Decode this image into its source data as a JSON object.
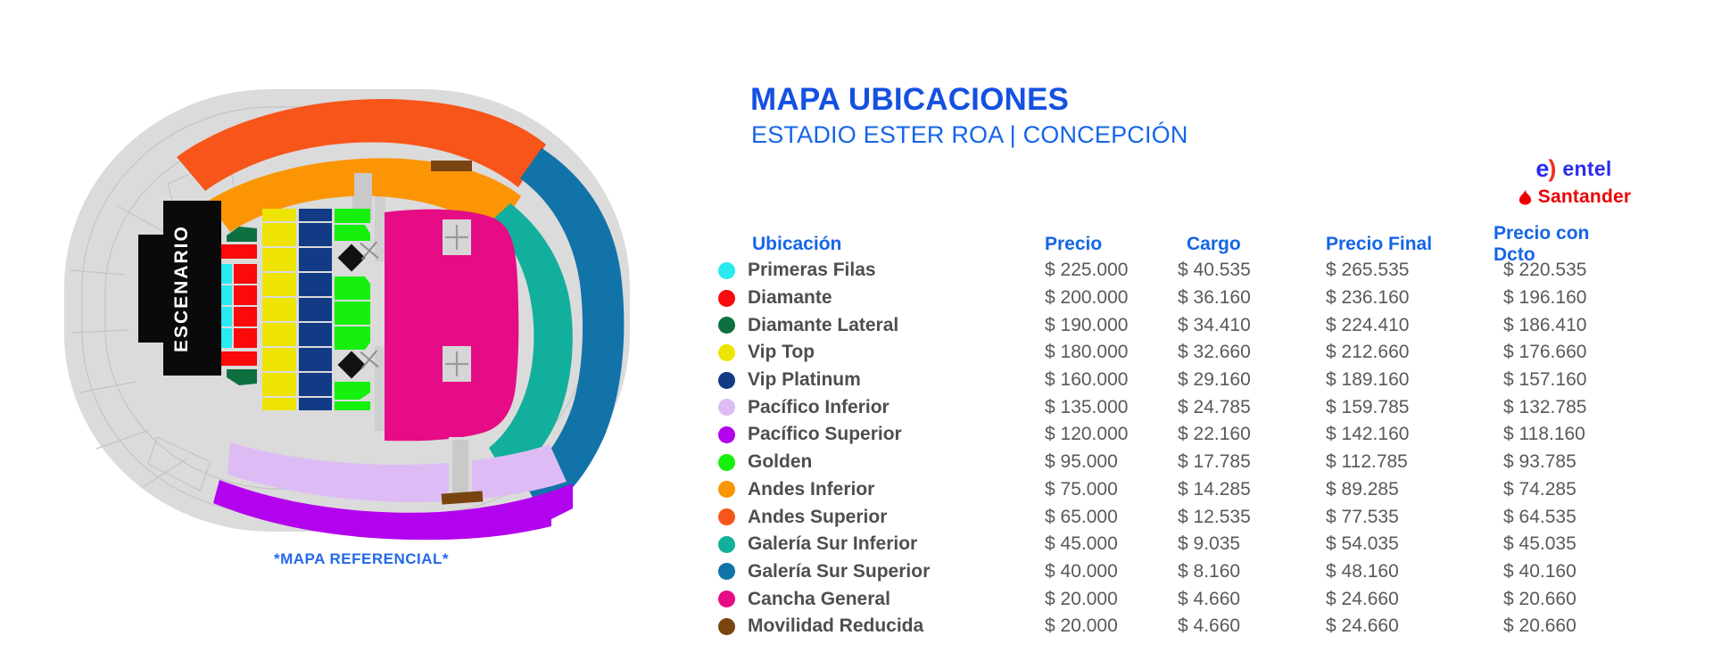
{
  "header": {
    "title": "MAPA UBICACIONES",
    "subtitle": "ESTADIO ESTER ROA | CONCEPCIÓN"
  },
  "map": {
    "stage_label": "ESCENARIO",
    "caption": "*MAPA REFERENCIAL*"
  },
  "sponsors": {
    "entel": "entel",
    "santander": "Santander"
  },
  "colors": {
    "accent_blue": "#1565E8",
    "title_blue": "#1451E1",
    "caption_blue": "#2368E8",
    "value_gray": "#58595B",
    "entel_blue": "#2B2BEF",
    "entel_red": "#EE3124",
    "santander_red": "#EC0000",
    "stadium_shell": "#DBDBDB",
    "stage_black": "#0A0A0A"
  },
  "table": {
    "headers": [
      "Ubicación",
      "Precio",
      "Cargo",
      "Precio Final",
      "Precio con Dcto"
    ],
    "rows": [
      {
        "name": "Primeras Filas",
        "color": "#29E9F1",
        "precio": "$ 225.000",
        "cargo": "$ 40.535",
        "precio_final": "$ 265.535",
        "precio_dcto": "$ 220.535"
      },
      {
        "name": "Diamante",
        "color": "#FA0A0A",
        "precio": "$ 200.000",
        "cargo": "$ 36.160",
        "precio_final": "$ 236.160",
        "precio_dcto": "$ 196.160"
      },
      {
        "name": "Diamante Lateral",
        "color": "#0E7040",
        "precio": "$ 190.000",
        "cargo": "$ 34.410",
        "precio_final": "$ 224.410",
        "precio_dcto": "$ 186.410"
      },
      {
        "name": "Vip Top",
        "color": "#EEE404",
        "precio": "$ 180.000",
        "cargo": "$ 32.660",
        "precio_final": "$ 212.660",
        "precio_dcto": "$ 176.660"
      },
      {
        "name": "Vip Platinum",
        "color": "#123A85",
        "precio": "$ 160.000",
        "cargo": "$ 29.160",
        "precio_final": "$ 189.160",
        "precio_dcto": "$ 157.160"
      },
      {
        "name": "Pacífico Inferior",
        "color": "#DDBCF5",
        "precio": "$ 135.000",
        "cargo": "$ 24.785",
        "precio_final": "$ 159.785",
        "precio_dcto": "$ 132.785"
      },
      {
        "name": "Pacífico Superior",
        "color": "#B303EE",
        "precio": "$ 120.000",
        "cargo": "$ 22.160",
        "precio_final": "$ 142.160",
        "precio_dcto": "$ 118.160"
      },
      {
        "name": "Golden",
        "color": "#15F00D",
        "precio": "$ 95.000",
        "cargo": "$ 17.785",
        "precio_final": "$ 112.785",
        "precio_dcto": "$ 93.785"
      },
      {
        "name": "Andes Inferior",
        "color": "#FB9504",
        "precio": "$ 75.000",
        "cargo": "$ 14.285",
        "precio_final": "$ 89.285",
        "precio_dcto": "$ 74.285"
      },
      {
        "name": "Andes Superior",
        "color": "#F8551B",
        "precio": "$ 65.000",
        "cargo": "$ 12.535",
        "precio_final": "$ 77.535",
        "precio_dcto": "$ 64.535"
      },
      {
        "name": "Galería Sur Inferior",
        "color": "#12AF9C",
        "precio": "$ 45.000",
        "cargo": "$ 9.035",
        "precio_final": "$ 54.035",
        "precio_dcto": "$ 45.035"
      },
      {
        "name": "Galería Sur Superior",
        "color": "#1273A8",
        "precio": "$ 40.000",
        "cargo": "$ 8.160",
        "precio_final": "$ 48.160",
        "precio_dcto": "$ 40.160"
      },
      {
        "name": "Cancha General",
        "color": "#E60C86",
        "precio": "$ 20.000",
        "cargo": "$ 4.660",
        "precio_final": "$ 24.660",
        "precio_dcto": "$ 20.660"
      },
      {
        "name": "Movilidad Reducida",
        "color": "#7A4410",
        "precio": "$ 20.000",
        "cargo": "$ 4.660",
        "precio_final": "$ 24.660",
        "precio_dcto": "$ 20.660"
      }
    ]
  }
}
